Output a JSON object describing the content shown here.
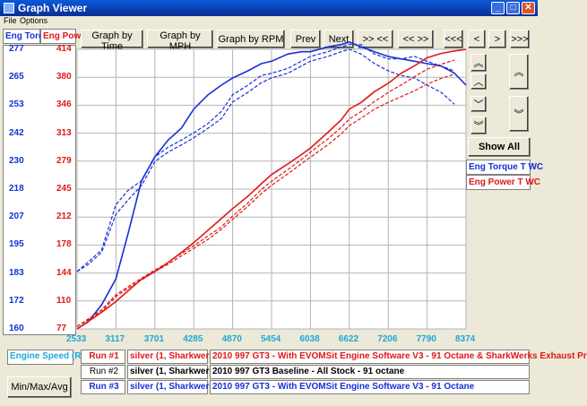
{
  "window": {
    "title": "Graph Viewer"
  },
  "menu": [
    "File",
    "Options"
  ],
  "toolbar": {
    "graph_by_time": "Graph by Time",
    "graph_by_mph": "Graph by MPH",
    "graph_by_rpm": "Graph by RPM",
    "prev": "Prev",
    "next": "Next",
    "zoom_out": ">> <<",
    "zoom_in": "<< >>",
    "scroll_first": "<<<",
    "scroll_left": "<",
    "scroll_right": ">",
    "scroll_last": ">>>"
  },
  "axis_headers": {
    "torque": "Eng Torq",
    "power": "Eng Pow"
  },
  "side": {
    "show_all": "Show All",
    "series_torque": "Eng Torque T WC",
    "series_power": "Eng Power T WC",
    "up_fast": "︽",
    "up": "︿",
    "down": "﹀",
    "down_fast": "︾"
  },
  "bottom": {
    "x_channel": "Engine Speed (R",
    "min_max_avg": "Min/Max/Avg",
    "runs": [
      {
        "label": "Run #1",
        "car": "silver (1, Sharkwerks",
        "desc": "2010 997 GT3 - With EVOMSit Engine Software V3 - 91 Octane & SharkWerks Exhaust Pr"
      },
      {
        "label": "Run #2",
        "car": "silver (1, Sharkwerks",
        "desc": "2010 997 GT3 Baseline - All Stock - 91 octane"
      },
      {
        "label": "Run #3",
        "car": "silver (1, Sharkwerks",
        "desc": "2010 997 GT3 - With EVOMSit Engine Software V3 - 91 Octane"
      }
    ]
  },
  "colors": {
    "torque": "#1530d8",
    "power": "#e01818",
    "xaxis": "#1ea8d8"
  },
  "chart_data": {
    "type": "line",
    "x_ticks": [
      "2533",
      "3117",
      "3701",
      "4285",
      "4870",
      "5454",
      "6038",
      "6622",
      "7206",
      "7790",
      "8374"
    ],
    "y_left_ticks": [
      "277",
      "265",
      "253",
      "242",
      "230",
      "218",
      "207",
      "195",
      "183",
      "172",
      "160"
    ],
    "y_right_ticks": [
      "414",
      "380",
      "346",
      "313",
      "279",
      "245",
      "212",
      "178",
      "144",
      "110",
      "77"
    ],
    "xlim": [
      2533,
      8374
    ],
    "ylim_left": [
      160,
      277
    ],
    "ylim_right": [
      77,
      414
    ],
    "grid": true,
    "series": [
      {
        "name": "Eng Torque T WC",
        "axis": "left",
        "color": "#1530d8",
        "style": "solid",
        "x": [
          2533,
          2700,
          2900,
          3117,
          3300,
          3500,
          3701,
          3900,
          4100,
          4285,
          4500,
          4700,
          4870,
          5100,
          5300,
          5454,
          5700,
          5900,
          6038,
          6300,
          6500,
          6622,
          6800,
          7000,
          7206,
          7400,
          7600,
          7790,
          8000,
          8200,
          8374
        ],
        "y": [
          160,
          163,
          170,
          181,
          200,
          222,
          232,
          239,
          244,
          252,
          258,
          262,
          265,
          268,
          271,
          272,
          275,
          276,
          276,
          278,
          279,
          280,
          278,
          276,
          274,
          273,
          272,
          271,
          270,
          267,
          262
        ]
      },
      {
        "name": "Eng Torque T WC",
        "axis": "left",
        "color": "#1530d8",
        "style": "dashed",
        "x": [
          2533,
          2700,
          2900,
          3117,
          3300,
          3500,
          3701,
          3900,
          4100,
          4285,
          4500,
          4700,
          4870,
          5100,
          5300,
          5454,
          5700,
          5900,
          6038,
          6300,
          6500,
          6622,
          6800,
          7000,
          7206,
          7400,
          7600,
          7790,
          8000,
          8200
        ],
        "y": [
          184,
          188,
          193,
          212,
          218,
          222,
          232,
          236,
          239,
          242,
          246,
          251,
          258,
          262,
          266,
          267,
          269,
          272,
          274,
          276,
          278,
          279,
          279,
          275,
          273,
          273,
          274,
          272,
          270,
          268
        ]
      },
      {
        "name": "Eng Torque T WC",
        "axis": "left",
        "color": "#1530d8",
        "style": "dashed",
        "x": [
          2533,
          2700,
          2900,
          3117,
          3300,
          3500,
          3701,
          3900,
          4100,
          4285,
          4500,
          4700,
          4870,
          5100,
          5300,
          5454,
          5700,
          5900,
          6038,
          6300,
          6500,
          6622,
          6800,
          7000,
          7206,
          7400,
          7600,
          7790,
          8000,
          8200
        ],
        "y": [
          184,
          187,
          192,
          208,
          214,
          220,
          230,
          234,
          237,
          240,
          244,
          248,
          255,
          259,
          263,
          265,
          267,
          270,
          272,
          274,
          276,
          277,
          275,
          271,
          268,
          266,
          265,
          262,
          259,
          254
        ]
      },
      {
        "name": "Eng Power T WC",
        "axis": "right",
        "color": "#e01818",
        "style": "solid",
        "x": [
          2533,
          2700,
          2900,
          3117,
          3300,
          3500,
          3701,
          3900,
          4100,
          4285,
          4500,
          4700,
          4870,
          5100,
          5300,
          5454,
          5700,
          5900,
          6038,
          6300,
          6500,
          6622,
          6800,
          7000,
          7206,
          7400,
          7600,
          7790,
          8000,
          8200,
          8374
        ],
        "y": [
          77,
          86,
          97,
          110,
          123,
          137,
          146,
          157,
          169,
          181,
          196,
          210,
          222,
          237,
          252,
          263,
          276,
          287,
          295,
          314,
          329,
          342,
          350,
          363,
          373,
          385,
          394,
          404,
          409,
          412,
          414
        ]
      },
      {
        "name": "Eng Power T WC",
        "axis": "right",
        "color": "#e01818",
        "style": "dashed",
        "x": [
          2533,
          2700,
          2900,
          3117,
          3300,
          3500,
          3701,
          3900,
          4100,
          4285,
          4500,
          4700,
          4870,
          5100,
          5300,
          5454,
          5700,
          5900,
          6038,
          6300,
          6500,
          6622,
          6800,
          7000,
          7206,
          7400,
          7600,
          7790,
          8000,
          8200
        ],
        "y": [
          80,
          89,
          100,
          118,
          128,
          138,
          148,
          157,
          168,
          177,
          189,
          200,
          213,
          229,
          245,
          255,
          269,
          281,
          290,
          306,
          320,
          330,
          339,
          351,
          362,
          371,
          381,
          390,
          396,
          401
        ]
      },
      {
        "name": "Eng Power T WC",
        "axis": "right",
        "color": "#e01818",
        "style": "dashed",
        "x": [
          2533,
          2700,
          2900,
          3117,
          3300,
          3500,
          3701,
          3900,
          4100,
          4285,
          4500,
          4700,
          4870,
          5100,
          5300,
          5454,
          5700,
          5900,
          6038,
          6300,
          6500,
          6622,
          6800,
          7000,
          7206,
          7400,
          7600,
          7790,
          8000,
          8200
        ],
        "y": [
          80,
          88,
          98,
          116,
          126,
          136,
          146,
          155,
          165,
          174,
          185,
          197,
          209,
          225,
          240,
          250,
          264,
          276,
          284,
          299,
          312,
          322,
          331,
          342,
          350,
          357,
          364,
          372,
          379,
          384
        ]
      }
    ]
  }
}
